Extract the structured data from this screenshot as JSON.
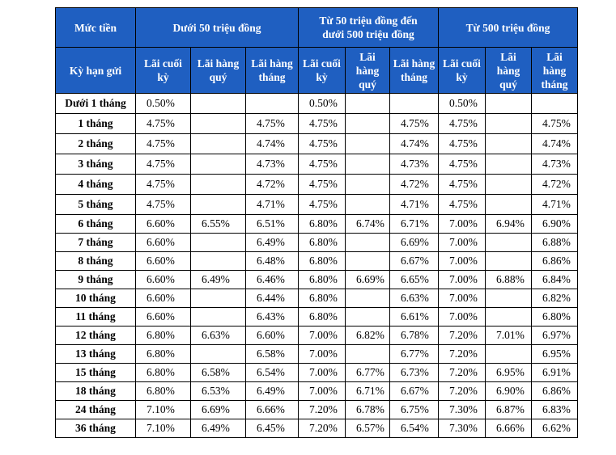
{
  "header": {
    "amount_label": "Mức tiền",
    "term_label": "Kỳ hạn gửi",
    "tiers": [
      "Dưới 50 triệu đồng",
      "Từ 50 triệu đồng đến dưới 500 triệu đồng",
      "Từ 500 triệu đồng"
    ],
    "sub": [
      "Lãi cuối kỳ",
      "Lãi hàng quý",
      "Lãi hàng tháng"
    ]
  },
  "rows": [
    {
      "term": "Dưới 1 tháng",
      "v": [
        "0.50%",
        "",
        "",
        "0.50%",
        "",
        "",
        "0.50%",
        "",
        ""
      ]
    },
    {
      "term": "1 tháng",
      "v": [
        "4.75%",
        "",
        "4.75%",
        "4.75%",
        "",
        "4.75%",
        "4.75%",
        "",
        "4.75%"
      ]
    },
    {
      "term": "2 tháng",
      "v": [
        "4.75%",
        "",
        "4.74%",
        "4.75%",
        "",
        "4.74%",
        "4.75%",
        "",
        "4.74%"
      ]
    },
    {
      "term": "3 tháng",
      "v": [
        "4.75%",
        "",
        "4.73%",
        "4.75%",
        "",
        "4.73%",
        "4.75%",
        "",
        "4.73%"
      ]
    },
    {
      "term": "4 tháng",
      "v": [
        "4.75%",
        "",
        "4.72%",
        "4.75%",
        "",
        "4.72%",
        "4.75%",
        "",
        "4.72%"
      ]
    },
    {
      "term": "5 tháng",
      "v": [
        "4.75%",
        "",
        "4.71%",
        "4.75%",
        "",
        "4.71%",
        "4.75%",
        "",
        "4.71%"
      ]
    },
    {
      "term": "6 tháng",
      "v": [
        "6.60%",
        "6.55%",
        "6.51%",
        "6.80%",
        "6.74%",
        "6.71%",
        "7.00%",
        "6.94%",
        "6.90%"
      ]
    },
    {
      "term": "7 tháng",
      "v": [
        "6.60%",
        "",
        "6.49%",
        "6.80%",
        "",
        "6.69%",
        "7.00%",
        "",
        "6.88%"
      ]
    },
    {
      "term": "8 tháng",
      "v": [
        "6.60%",
        "",
        "6.48%",
        "6.80%",
        "",
        "6.67%",
        "7.00%",
        "",
        "6.86%"
      ]
    },
    {
      "term": "9 tháng",
      "v": [
        "6.60%",
        "6.49%",
        "6.46%",
        "6.80%",
        "6.69%",
        "6.65%",
        "7.00%",
        "6.88%",
        "6.84%"
      ]
    },
    {
      "term": "10 tháng",
      "v": [
        "6.60%",
        "",
        "6.44%",
        "6.80%",
        "",
        "6.63%",
        "7.00%",
        "",
        "6.82%"
      ]
    },
    {
      "term": "11 tháng",
      "v": [
        "6.60%",
        "",
        "6.43%",
        "6.80%",
        "",
        "6.61%",
        "7.00%",
        "",
        "6.80%"
      ]
    },
    {
      "term": "12 tháng",
      "v": [
        "6.80%",
        "6.63%",
        "6.60%",
        "7.00%",
        "6.82%",
        "6.78%",
        "7.20%",
        "7.01%",
        "6.97%"
      ]
    },
    {
      "term": "13 tháng",
      "v": [
        "6.80%",
        "",
        "6.58%",
        "7.00%",
        "",
        "6.77%",
        "7.20%",
        "",
        "6.95%"
      ]
    },
    {
      "term": "15 tháng",
      "v": [
        "6.80%",
        "6.58%",
        "6.54%",
        "7.00%",
        "6.77%",
        "6.73%",
        "7.20%",
        "6.95%",
        "6.91%"
      ]
    },
    {
      "term": "18 tháng",
      "v": [
        "6.80%",
        "6.53%",
        "6.49%",
        "7.00%",
        "6.71%",
        "6.67%",
        "7.20%",
        "6.90%",
        "6.86%"
      ]
    },
    {
      "term": "24 tháng",
      "v": [
        "7.10%",
        "6.69%",
        "6.66%",
        "7.20%",
        "6.78%",
        "6.75%",
        "7.30%",
        "6.87%",
        "6.83%"
      ]
    },
    {
      "term": "36 tháng",
      "v": [
        "7.10%",
        "6.49%",
        "6.45%",
        "7.20%",
        "6.57%",
        "6.54%",
        "7.30%",
        "6.66%",
        "6.62%"
      ]
    }
  ]
}
